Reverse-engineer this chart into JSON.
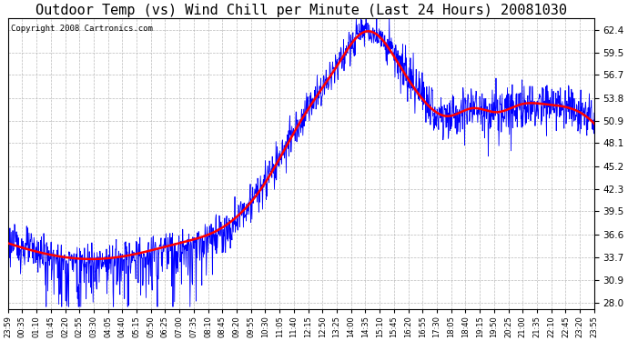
{
  "title": "Outdoor Temp (vs) Wind Chill per Minute (Last 24 Hours) 20081030",
  "copyright": "Copyright 2008 Cartronics.com",
  "yticks": [
    28.0,
    30.9,
    33.7,
    36.6,
    39.5,
    42.3,
    45.2,
    48.1,
    50.9,
    53.8,
    56.7,
    59.5,
    62.4
  ],
  "ylim": [
    27.2,
    63.8
  ],
  "bg_color": "#ffffff",
  "plot_bg_color": "#ffffff",
  "grid_color": "#aaaaaa",
  "line1_color": "#0000ff",
  "line2_color": "#ff0000",
  "title_fontsize": 11,
  "copyright_fontsize": 6.5,
  "xtick_labels": [
    "23:59",
    "00:35",
    "01:10",
    "01:45",
    "02:20",
    "02:55",
    "03:30",
    "04:05",
    "04:40",
    "05:15",
    "05:50",
    "06:25",
    "07:00",
    "07:35",
    "08:10",
    "08:45",
    "09:20",
    "09:55",
    "10:30",
    "11:05",
    "11:40",
    "12:15",
    "12:50",
    "13:25",
    "14:00",
    "14:35",
    "15:10",
    "15:45",
    "16:20",
    "16:55",
    "17:30",
    "18:05",
    "18:40",
    "19:15",
    "19:50",
    "20:25",
    "21:00",
    "21:35",
    "22:10",
    "22:45",
    "23:20",
    "23:55"
  ]
}
